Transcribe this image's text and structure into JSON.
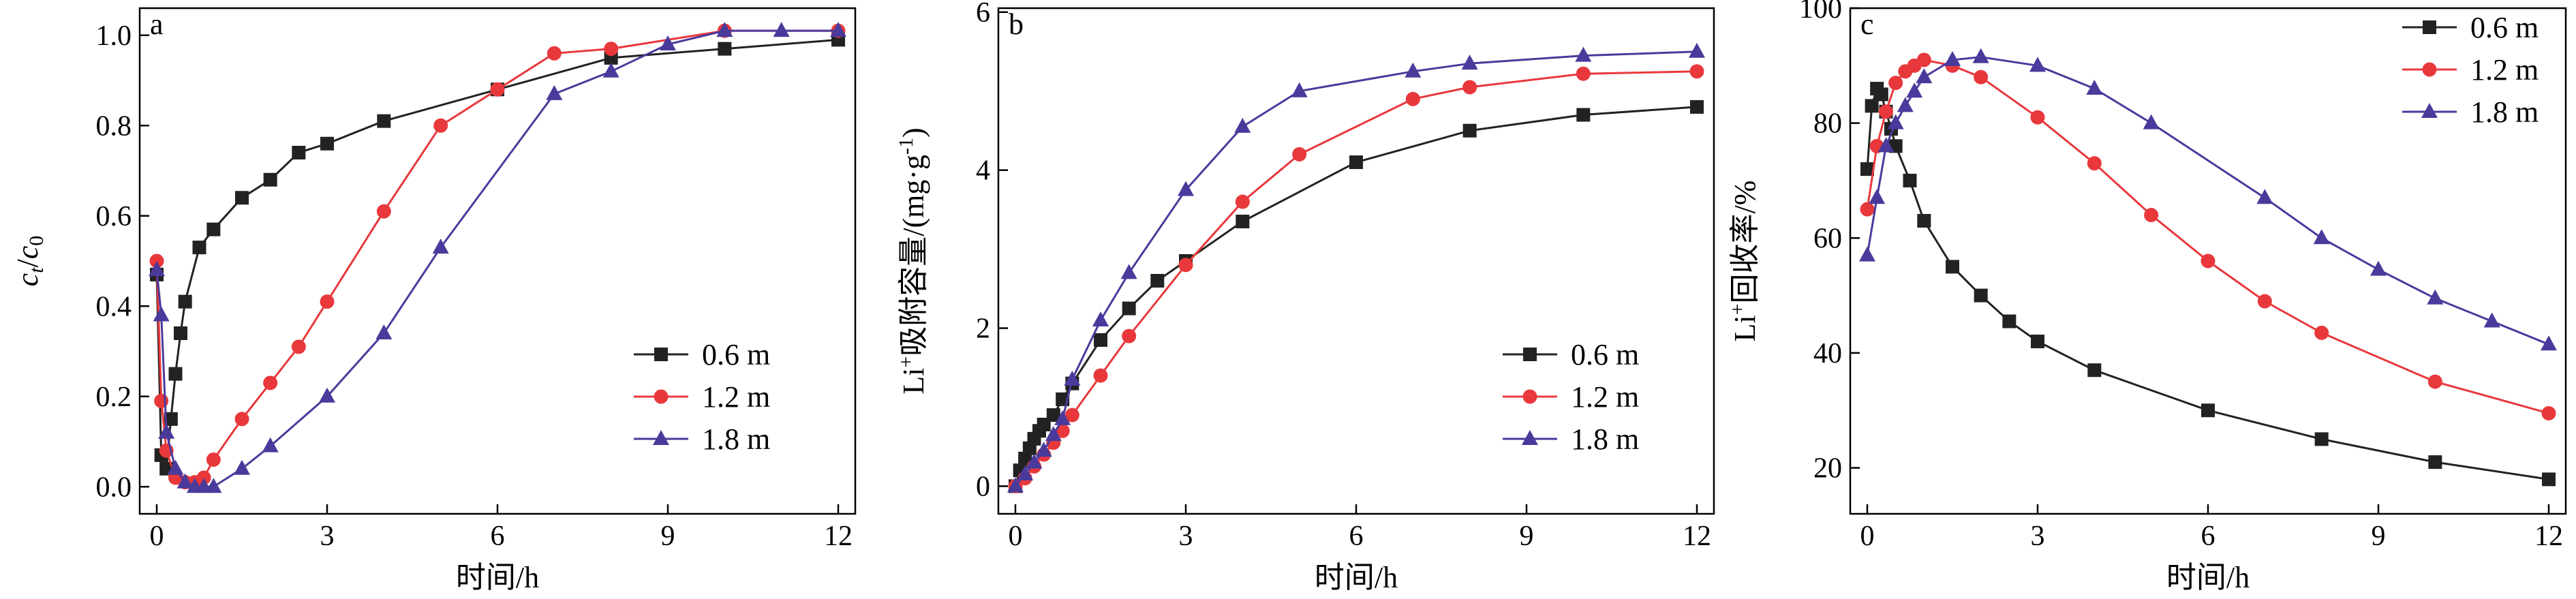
{
  "chart_data": [
    {
      "type": "line",
      "panel_label": "a",
      "ylabel": "c_t/c_0",
      "ylabel_parts": {
        "main": "c",
        "sub1": "t",
        "slash": "/",
        "main2": "c",
        "sub2": "0"
      },
      "xlabel": "时间/h",
      "xlim": [
        -0.3,
        12.3
      ],
      "ylim": [
        -0.06,
        1.06
      ],
      "xticks": [
        0,
        3,
        6,
        9,
        12
      ],
      "xtick_labels": [
        "0",
        "3",
        "6",
        "9",
        "12"
      ],
      "yticks": [
        0.0,
        0.2,
        0.4,
        0.6,
        0.8,
        1.0
      ],
      "ytick_labels": [
        "0.0",
        "0.2",
        "0.4",
        "0.6",
        "0.8",
        "1.0"
      ],
      "legend": "lower-right",
      "series": [
        {
          "name": "0.6 m",
          "marker": "square",
          "x": [
            0,
            0.08,
            0.17,
            0.25,
            0.33,
            0.42,
            0.5,
            0.75,
            1,
            1.5,
            2,
            2.5,
            3,
            4,
            6,
            8,
            10,
            12
          ],
          "y": [
            0.47,
            0.07,
            0.04,
            0.15,
            0.25,
            0.34,
            0.41,
            0.53,
            0.57,
            0.64,
            0.68,
            0.74,
            0.76,
            0.81,
            0.88,
            0.95,
            0.97,
            0.99
          ]
        },
        {
          "name": "1.2 m",
          "marker": "circle",
          "x": [
            0,
            0.08,
            0.17,
            0.33,
            0.5,
            0.67,
            0.83,
            1,
            1.5,
            2,
            2.5,
            3,
            4,
            5,
            6,
            7,
            8,
            10,
            12
          ],
          "y": [
            0.5,
            0.19,
            0.08,
            0.02,
            0.01,
            0.01,
            0.02,
            0.06,
            0.15,
            0.23,
            0.31,
            0.41,
            0.61,
            0.8,
            0.88,
            0.96,
            0.97,
            1.01,
            1.01
          ]
        },
        {
          "name": "1.8 m",
          "marker": "triangle",
          "x": [
            0,
            0.08,
            0.17,
            0.33,
            0.5,
            0.67,
            0.83,
            1,
            1.5,
            2,
            3,
            4,
            5,
            7,
            8,
            9,
            10,
            11,
            12
          ],
          "y": [
            0.48,
            0.38,
            0.12,
            0.04,
            0.01,
            0.0,
            0.0,
            0.0,
            0.04,
            0.09,
            0.2,
            0.34,
            0.53,
            0.87,
            0.92,
            0.98,
            1.01,
            1.01,
            1.01
          ]
        }
      ]
    },
    {
      "type": "line",
      "panel_label": "b",
      "ylabel": "Li⁺吸附容量/(mg·g⁻¹)",
      "ylabel_parts": {
        "base": "Li",
        "sup1": "+",
        "mid": "吸附容量/(mg·g",
        "sup2": "-1",
        "end": ")"
      },
      "xlabel": "时间/h",
      "xlim": [
        -0.3,
        12.3
      ],
      "ylim": [
        -0.35,
        6.05
      ],
      "xticks": [
        0,
        3,
        6,
        9,
        12
      ],
      "xtick_labels": [
        "0",
        "3",
        "6",
        "9",
        "12"
      ],
      "yticks": [
        0,
        2,
        4,
        6
      ],
      "ytick_labels": [
        "0",
        "2",
        "4",
        "6"
      ],
      "legend": "lower-right",
      "series": [
        {
          "name": "0.6 m",
          "marker": "square",
          "x": [
            0,
            0.08,
            0.17,
            0.25,
            0.33,
            0.42,
            0.5,
            0.67,
            0.83,
            1,
            1.5,
            2,
            2.5,
            3,
            4,
            6,
            8,
            10,
            12
          ],
          "y": [
            0,
            0.2,
            0.35,
            0.48,
            0.6,
            0.7,
            0.78,
            0.9,
            1.1,
            1.3,
            1.85,
            2.25,
            2.6,
            2.85,
            3.35,
            4.1,
            4.5,
            4.7,
            4.8
          ]
        },
        {
          "name": "1.2 m",
          "marker": "circle",
          "x": [
            0,
            0.17,
            0.33,
            0.5,
            0.67,
            0.83,
            1,
            1.5,
            2,
            3,
            4,
            5,
            7,
            8,
            10,
            12
          ],
          "y": [
            0,
            0.1,
            0.25,
            0.4,
            0.55,
            0.7,
            0.9,
            1.4,
            1.9,
            2.8,
            3.6,
            4.2,
            4.9,
            5.05,
            5.22,
            5.25
          ]
        },
        {
          "name": "1.8 m",
          "marker": "triangle",
          "x": [
            0,
            0.17,
            0.33,
            0.5,
            0.67,
            0.83,
            1,
            1.5,
            2,
            3,
            4,
            5,
            7,
            8,
            10,
            12
          ],
          "y": [
            0,
            0.15,
            0.3,
            0.45,
            0.65,
            0.85,
            1.35,
            2.1,
            2.7,
            3.75,
            4.55,
            5.0,
            5.25,
            5.35,
            5.45,
            5.5
          ]
        }
      ]
    },
    {
      "type": "line",
      "panel_label": "c",
      "ylabel": "Li⁺回收率/%",
      "ylabel_parts": {
        "base": "Li",
        "sup1": "+",
        "mid": "回收率/%"
      },
      "xlabel": "时间/h",
      "xlim": [
        -0.3,
        12.3
      ],
      "ylim": [
        12,
        100
      ],
      "xticks": [
        0,
        3,
        6,
        9,
        12
      ],
      "xtick_labels": [
        "0",
        "3",
        "6",
        "9",
        "12"
      ],
      "yticks": [
        20,
        40,
        60,
        80,
        100
      ],
      "ytick_labels": [
        "20",
        "40",
        "60",
        "80",
        "100"
      ],
      "legend": "top-right",
      "series": [
        {
          "name": "0.6 m",
          "marker": "square",
          "x": [
            0,
            0.08,
            0.17,
            0.25,
            0.33,
            0.42,
            0.5,
            0.75,
            1,
            1.5,
            2,
            2.5,
            3,
            4,
            6,
            8,
            10,
            12
          ],
          "y": [
            72,
            83,
            86,
            85,
            82,
            79,
            76,
            70,
            63,
            55,
            50,
            45.5,
            42,
            37,
            30,
            25,
            21,
            18
          ]
        },
        {
          "name": "1.2 m",
          "marker": "circle",
          "x": [
            0,
            0.17,
            0.33,
            0.5,
            0.67,
            0.83,
            1,
            1.5,
            2,
            3,
            4,
            5,
            6,
            7,
            8,
            10,
            12
          ],
          "y": [
            65,
            76,
            82,
            87,
            89,
            90,
            91,
            90,
            88,
            81,
            73,
            64,
            56,
            49,
            43.5,
            35,
            29.5
          ]
        },
        {
          "name": "1.8 m",
          "marker": "triangle",
          "x": [
            0,
            0.17,
            0.33,
            0.5,
            0.67,
            0.83,
            1,
            1.5,
            2,
            3,
            4,
            5,
            7,
            8,
            9,
            10,
            11,
            12
          ],
          "y": [
            57,
            67,
            76,
            80,
            83,
            85.5,
            88,
            91,
            91.5,
            90,
            86,
            80,
            67,
            60,
            54.5,
            49.5,
            45.5,
            41.5
          ]
        }
      ]
    }
  ],
  "series_colors": [
    "#222222",
    "#e8383c",
    "#4a3a9c"
  ]
}
